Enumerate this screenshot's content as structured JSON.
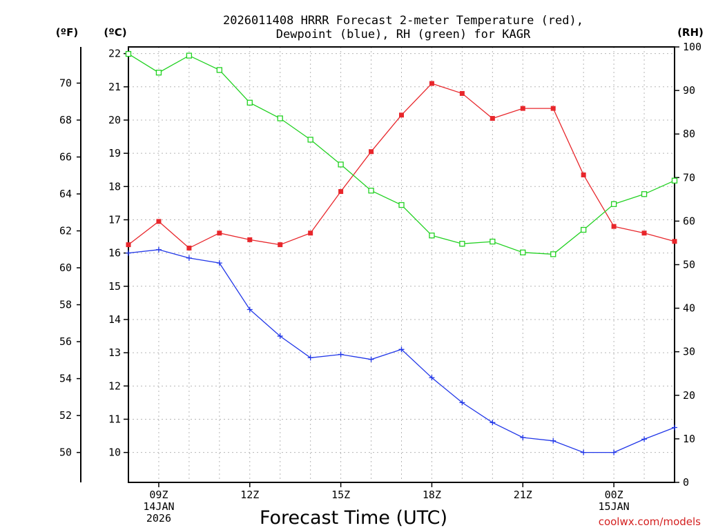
{
  "chart_data": {
    "type": "line",
    "title_line1": "2026011408 HRRR Forecast 2-meter Temperature (red),",
    "title_line2": "Dewpoint (blue), RH (green) for KAGR",
    "xlabel": "Forecast Time (UTC)",
    "credit": "coolwx.com/models",
    "units": {
      "fahrenheit": "(ºF)",
      "celsius": "(ºC)",
      "rh": "(RH)"
    },
    "x_hours": [
      8,
      9,
      10,
      11,
      12,
      13,
      14,
      15,
      16,
      17,
      18,
      19,
      20,
      21,
      22,
      23,
      24,
      25,
      26
    ],
    "xlim": [
      8,
      26
    ],
    "x_ticks": [
      {
        "hour": 9,
        "lines": [
          "09Z",
          "14JAN",
          "2026"
        ]
      },
      {
        "hour": 12,
        "lines": [
          "12Z"
        ]
      },
      {
        "hour": 15,
        "lines": [
          "15Z"
        ]
      },
      {
        "hour": 18,
        "lines": [
          "18Z"
        ]
      },
      {
        "hour": 21,
        "lines": [
          "21Z"
        ]
      },
      {
        "hour": 24,
        "lines": [
          "00Z",
          "15JAN"
        ]
      }
    ],
    "celsius_axis": {
      "min": 9.1,
      "max": 22.2,
      "ticks": [
        10,
        11,
        12,
        13,
        14,
        15,
        16,
        17,
        18,
        19,
        20,
        21,
        22
      ]
    },
    "fahrenheit_ticks": [
      50,
      52,
      54,
      56,
      58,
      60,
      62,
      64,
      66,
      68,
      70
    ],
    "rh_axis": {
      "min": 0,
      "max": 100,
      "ticks": [
        0,
        10,
        20,
        30,
        40,
        50,
        60,
        70,
        80,
        90,
        100
      ]
    },
    "series": [
      {
        "name": "2-meter Temperature",
        "axis": "celsius",
        "color": "#e8262b",
        "marker": "filled-square",
        "values": [
          16.25,
          16.95,
          16.15,
          16.6,
          16.4,
          16.25,
          16.6,
          17.85,
          19.05,
          20.15,
          21.1,
          20.8,
          20.05,
          20.35,
          20.35,
          18.35,
          16.8,
          16.6,
          16.35
        ]
      },
      {
        "name": "Dewpoint",
        "axis": "celsius",
        "color": "#2036e8",
        "marker": "plus",
        "values": [
          16.0,
          16.1,
          15.85,
          15.7,
          14.3,
          13.5,
          12.85,
          12.95,
          12.8,
          13.1,
          12.25,
          11.5,
          10.9,
          10.45,
          10.35,
          10.0,
          10.0,
          10.4,
          10.75
        ]
      },
      {
        "name": "RH",
        "axis": "rh",
        "color": "#21d121",
        "marker": "open-square",
        "values": [
          98.4,
          94.1,
          98.0,
          94.7,
          87.2,
          83.6,
          78.7,
          73.0,
          67.0,
          63.7,
          56.7,
          54.8,
          55.3,
          52.8,
          52.4,
          58.0,
          63.9,
          66.2,
          69.3
        ]
      }
    ]
  }
}
